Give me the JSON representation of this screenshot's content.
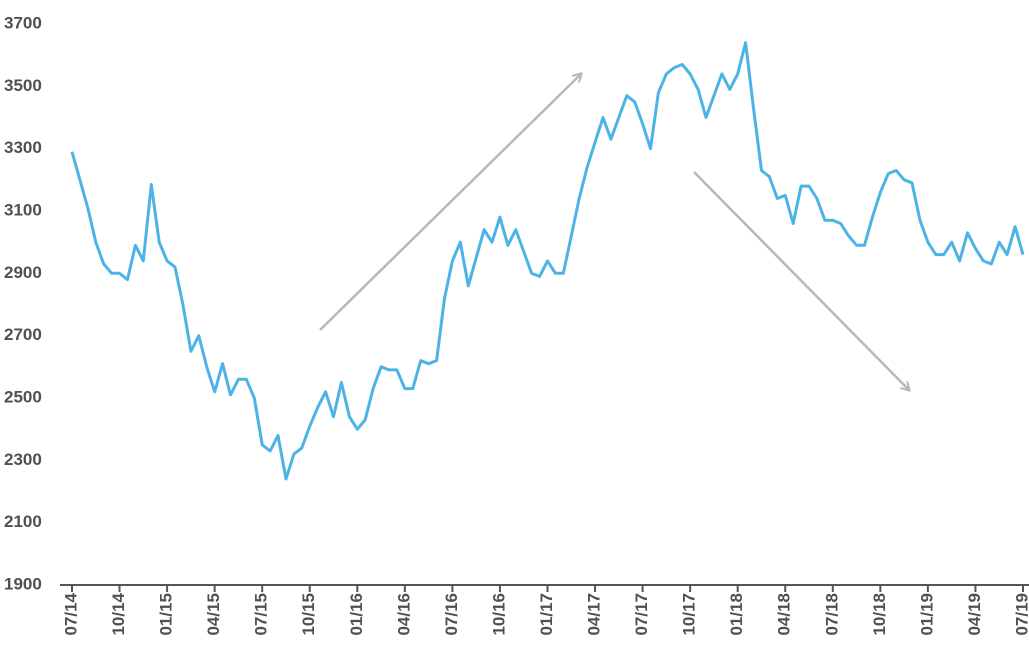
{
  "chart_data": {
    "type": "line",
    "categories": [
      "07/14",
      null,
      null,
      null,
      null,
      null,
      "10/14",
      null,
      null,
      null,
      null,
      null,
      "01/15",
      null,
      null,
      null,
      null,
      null,
      "04/15",
      null,
      null,
      null,
      null,
      null,
      "07/15",
      null,
      null,
      null,
      null,
      null,
      "10/15",
      null,
      null,
      null,
      null,
      null,
      "01/16",
      null,
      null,
      null,
      null,
      null,
      "04/16",
      null,
      null,
      null,
      null,
      null,
      "07/16",
      null,
      null,
      null,
      null,
      null,
      "10/16",
      null,
      null,
      null,
      null,
      null,
      "01/17",
      null,
      null,
      null,
      null,
      null,
      "04/17",
      null,
      null,
      null,
      null,
      null,
      "07/17",
      null,
      null,
      null,
      null,
      null,
      "10/17",
      null,
      null,
      null,
      null,
      null,
      "01/18",
      null,
      null,
      null,
      null,
      null,
      "04/18",
      null,
      null,
      null,
      null,
      null,
      "07/18",
      null,
      null,
      null,
      null,
      null,
      "10/18",
      null,
      null,
      null,
      null,
      null,
      "01/19",
      null,
      null,
      null,
      null,
      null,
      "04/19",
      null,
      null,
      null,
      null,
      null,
      "07/19"
    ],
    "values": [
      3290,
      3200,
      3110,
      3000,
      2930,
      2900,
      2900,
      2880,
      2990,
      2940,
      3185,
      3000,
      2940,
      2920,
      2800,
      2650,
      2700,
      2600,
      2520,
      2610,
      2510,
      2560,
      2560,
      2500,
      2350,
      2330,
      2380,
      2240,
      2320,
      2340,
      2410,
      2470,
      2520,
      2440,
      2550,
      2440,
      2400,
      2430,
      2530,
      2600,
      2590,
      2590,
      2530,
      2530,
      2620,
      2610,
      2620,
      2820,
      2940,
      3000,
      2860,
      2950,
      3040,
      3000,
      3080,
      2990,
      3040,
      2970,
      2900,
      2890,
      2940,
      2900,
      2900,
      3020,
      3140,
      3240,
      3320,
      3400,
      3330,
      3400,
      3470,
      3450,
      3380,
      3300,
      3480,
      3540,
      3560,
      3570,
      3540,
      3490,
      3400,
      3470,
      3540,
      3490,
      3540,
      3640,
      3430,
      3230,
      3210,
      3140,
      3150,
      3060,
      3180,
      3180,
      3140,
      3070,
      3070,
      3060,
      3020,
      2990,
      2990,
      3080,
      3160,
      3220,
      3230,
      3200,
      3190,
      3070,
      3000,
      2960,
      2960,
      3000,
      2940,
      3030,
      2980,
      2940,
      2930,
      3000,
      2960,
      3050,
      2960
    ],
    "color": "#4db3e6",
    "ylim": [
      1900,
      3700
    ],
    "yticks": [
      1900,
      2100,
      2300,
      2500,
      2700,
      2900,
      3100,
      3300,
      3500,
      3700
    ]
  }
}
